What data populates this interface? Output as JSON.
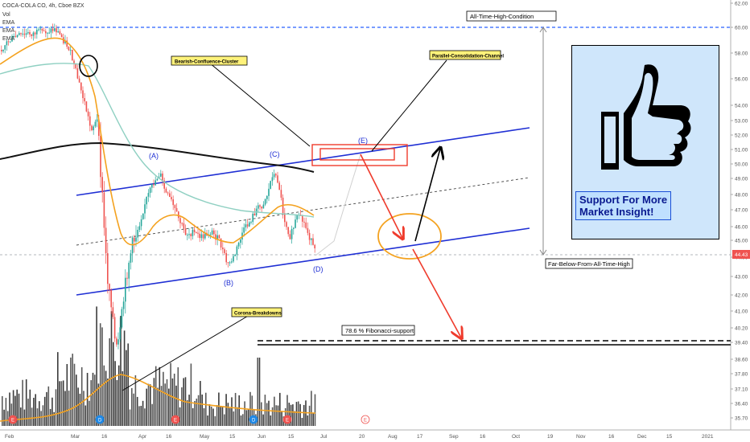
{
  "header": {
    "symbol_line": "COCA-COLA CO, 4h, Cboe BZX",
    "indicators": [
      "Vol",
      "EMA",
      "EMA",
      "EMA"
    ]
  },
  "price_tag": "44.43",
  "support_box": {
    "line1": "Support For More",
    "line2": "Market Insight!"
  },
  "thumb_icon": "thumbs-up-icon",
  "annotations": {
    "ath": "All-Time-High-Condition",
    "far_below": "Far-Below-From-All-Time-High",
    "bearish": "Bearish-Confluence-Cluster",
    "parallel": "Parallel-Consolidation-Channel",
    "corona": "Corona-Breakdowns",
    "fib": "78.6 % Fibonacci-support"
  },
  "wave_labels": [
    "(A)",
    "(B)",
    "(C)",
    "(D)",
    "(E)"
  ],
  "event_markers": [
    "E",
    "D",
    "E",
    "D",
    "E",
    "D",
    "E",
    "E"
  ],
  "colors": {
    "up": "#26a69a",
    "down": "#ef5350",
    "channel": "#1f2fd4",
    "ema_fast": "#f4a21f",
    "ema_mid": "#8fd0c2",
    "ema_slow": "#111111",
    "arrow_red": "#ef3b2c",
    "ath_line": "#2962ff"
  },
  "chart_data": {
    "type": "line",
    "title": "COCA-COLA CO, 4h, Cboe BZX",
    "y_axis": {
      "ticks": [
        "62.00",
        "60.00",
        "58.00",
        "56.00",
        "54.00",
        "53.00",
        "52.00",
        "51.00",
        "50.00",
        "49.00",
        "48.00",
        "47.00",
        "46.00",
        "45.00",
        "44.00",
        "43.00",
        "42.00",
        "41.00",
        "40.20",
        "39.40",
        "38.60",
        "37.80",
        "37.10",
        "36.40",
        "35.70"
      ],
      "range": [
        35.5,
        62
      ]
    },
    "x_axis": {
      "ticks": [
        "Feb",
        "Mar",
        "16",
        "Apr",
        "16",
        "May",
        "15",
        "Jun",
        "15",
        "Jul",
        "20",
        "Aug",
        "17",
        "Sep",
        "16",
        "Oct",
        "19",
        "Nov",
        "16",
        "Dec",
        "15",
        "2021"
      ]
    },
    "series": [
      {
        "name": "Price",
        "points": [
          [
            "Feb",
            58.5
          ],
          [
            "Feb 10",
            59.2
          ],
          [
            "Feb 21",
            60.1
          ],
          [
            "Mar 2",
            55.0
          ],
          [
            "Mar 9",
            52.2
          ],
          [
            "Mar 16",
            46.5
          ],
          [
            "Mar 23",
            38.0
          ],
          [
            "Mar 27",
            42.5
          ],
          [
            "Apr 2",
            45.0
          ],
          [
            "Apr 13",
            49.2
          ],
          [
            "Apr 24",
            46.8
          ],
          [
            "May 6",
            45.8
          ],
          [
            "May 14",
            43.8
          ],
          [
            "May 26",
            46.8
          ],
          [
            "Jun 3",
            47.5
          ],
          [
            "Jun 9",
            49.7
          ],
          [
            "Jun 15",
            47.5
          ],
          [
            "Jun 22",
            46.5
          ],
          [
            "Jun 26",
            44.4
          ]
        ]
      },
      {
        "name": "EMA (fast)",
        "points": [
          [
            "Feb",
            58.5
          ],
          [
            "Mar 2",
            57.0
          ],
          [
            "Mar 23",
            42.0
          ],
          [
            "Apr 13",
            46.5
          ],
          [
            "May 14",
            45.2
          ],
          [
            "Jun 9",
            47.2
          ],
          [
            "Jun 26",
            46.6
          ]
        ]
      },
      {
        "name": "EMA (mid)",
        "points": [
          [
            "Feb",
            56.0
          ],
          [
            "Mar 9",
            56.0
          ],
          [
            "Apr 13",
            48.0
          ],
          [
            "May 14",
            46.5
          ],
          [
            "Jun 26",
            47.0
          ]
        ]
      },
      {
        "name": "EMA (slow)",
        "points": [
          [
            "Feb",
            51.2
          ],
          [
            "Mar 16",
            51.3
          ],
          [
            "Jun 9",
            50.2
          ],
          [
            "Jun 26",
            49.6
          ]
        ]
      }
    ],
    "channel": {
      "upper": [
        [
          "Feb 24",
          48.3
        ],
        [
          "Oct 10",
          52.6
        ]
      ],
      "lower": [
        [
          "Feb 24",
          42.0
        ],
        [
          "Oct 10",
          45.8
        ]
      ],
      "midline": [
        [
          "Feb 24",
          45.3
        ],
        [
          "Oct 10",
          49.1
        ]
      ]
    },
    "levels": [
      {
        "label": "All-Time-High-Condition",
        "value": 60.1
      },
      {
        "label": "78.6 % Fibonacci-support",
        "value": 39.4
      },
      {
        "label": "Far-Below-From-All-Time-High",
        "value": 44.4
      }
    ],
    "waves": [
      {
        "label": "(A)",
        "date": "Apr 13",
        "value": 49.2
      },
      {
        "label": "(B)",
        "date": "May 14",
        "value": 43.8
      },
      {
        "label": "(C)",
        "date": "Jun 9",
        "value": 49.7
      },
      {
        "label": "(D)",
        "date": "Jun 26",
        "value": 44.4
      },
      {
        "label": "(E)",
        "date": "Jul 29",
        "value": 51.2
      }
    ],
    "grid": false,
    "legend": "top-left"
  }
}
